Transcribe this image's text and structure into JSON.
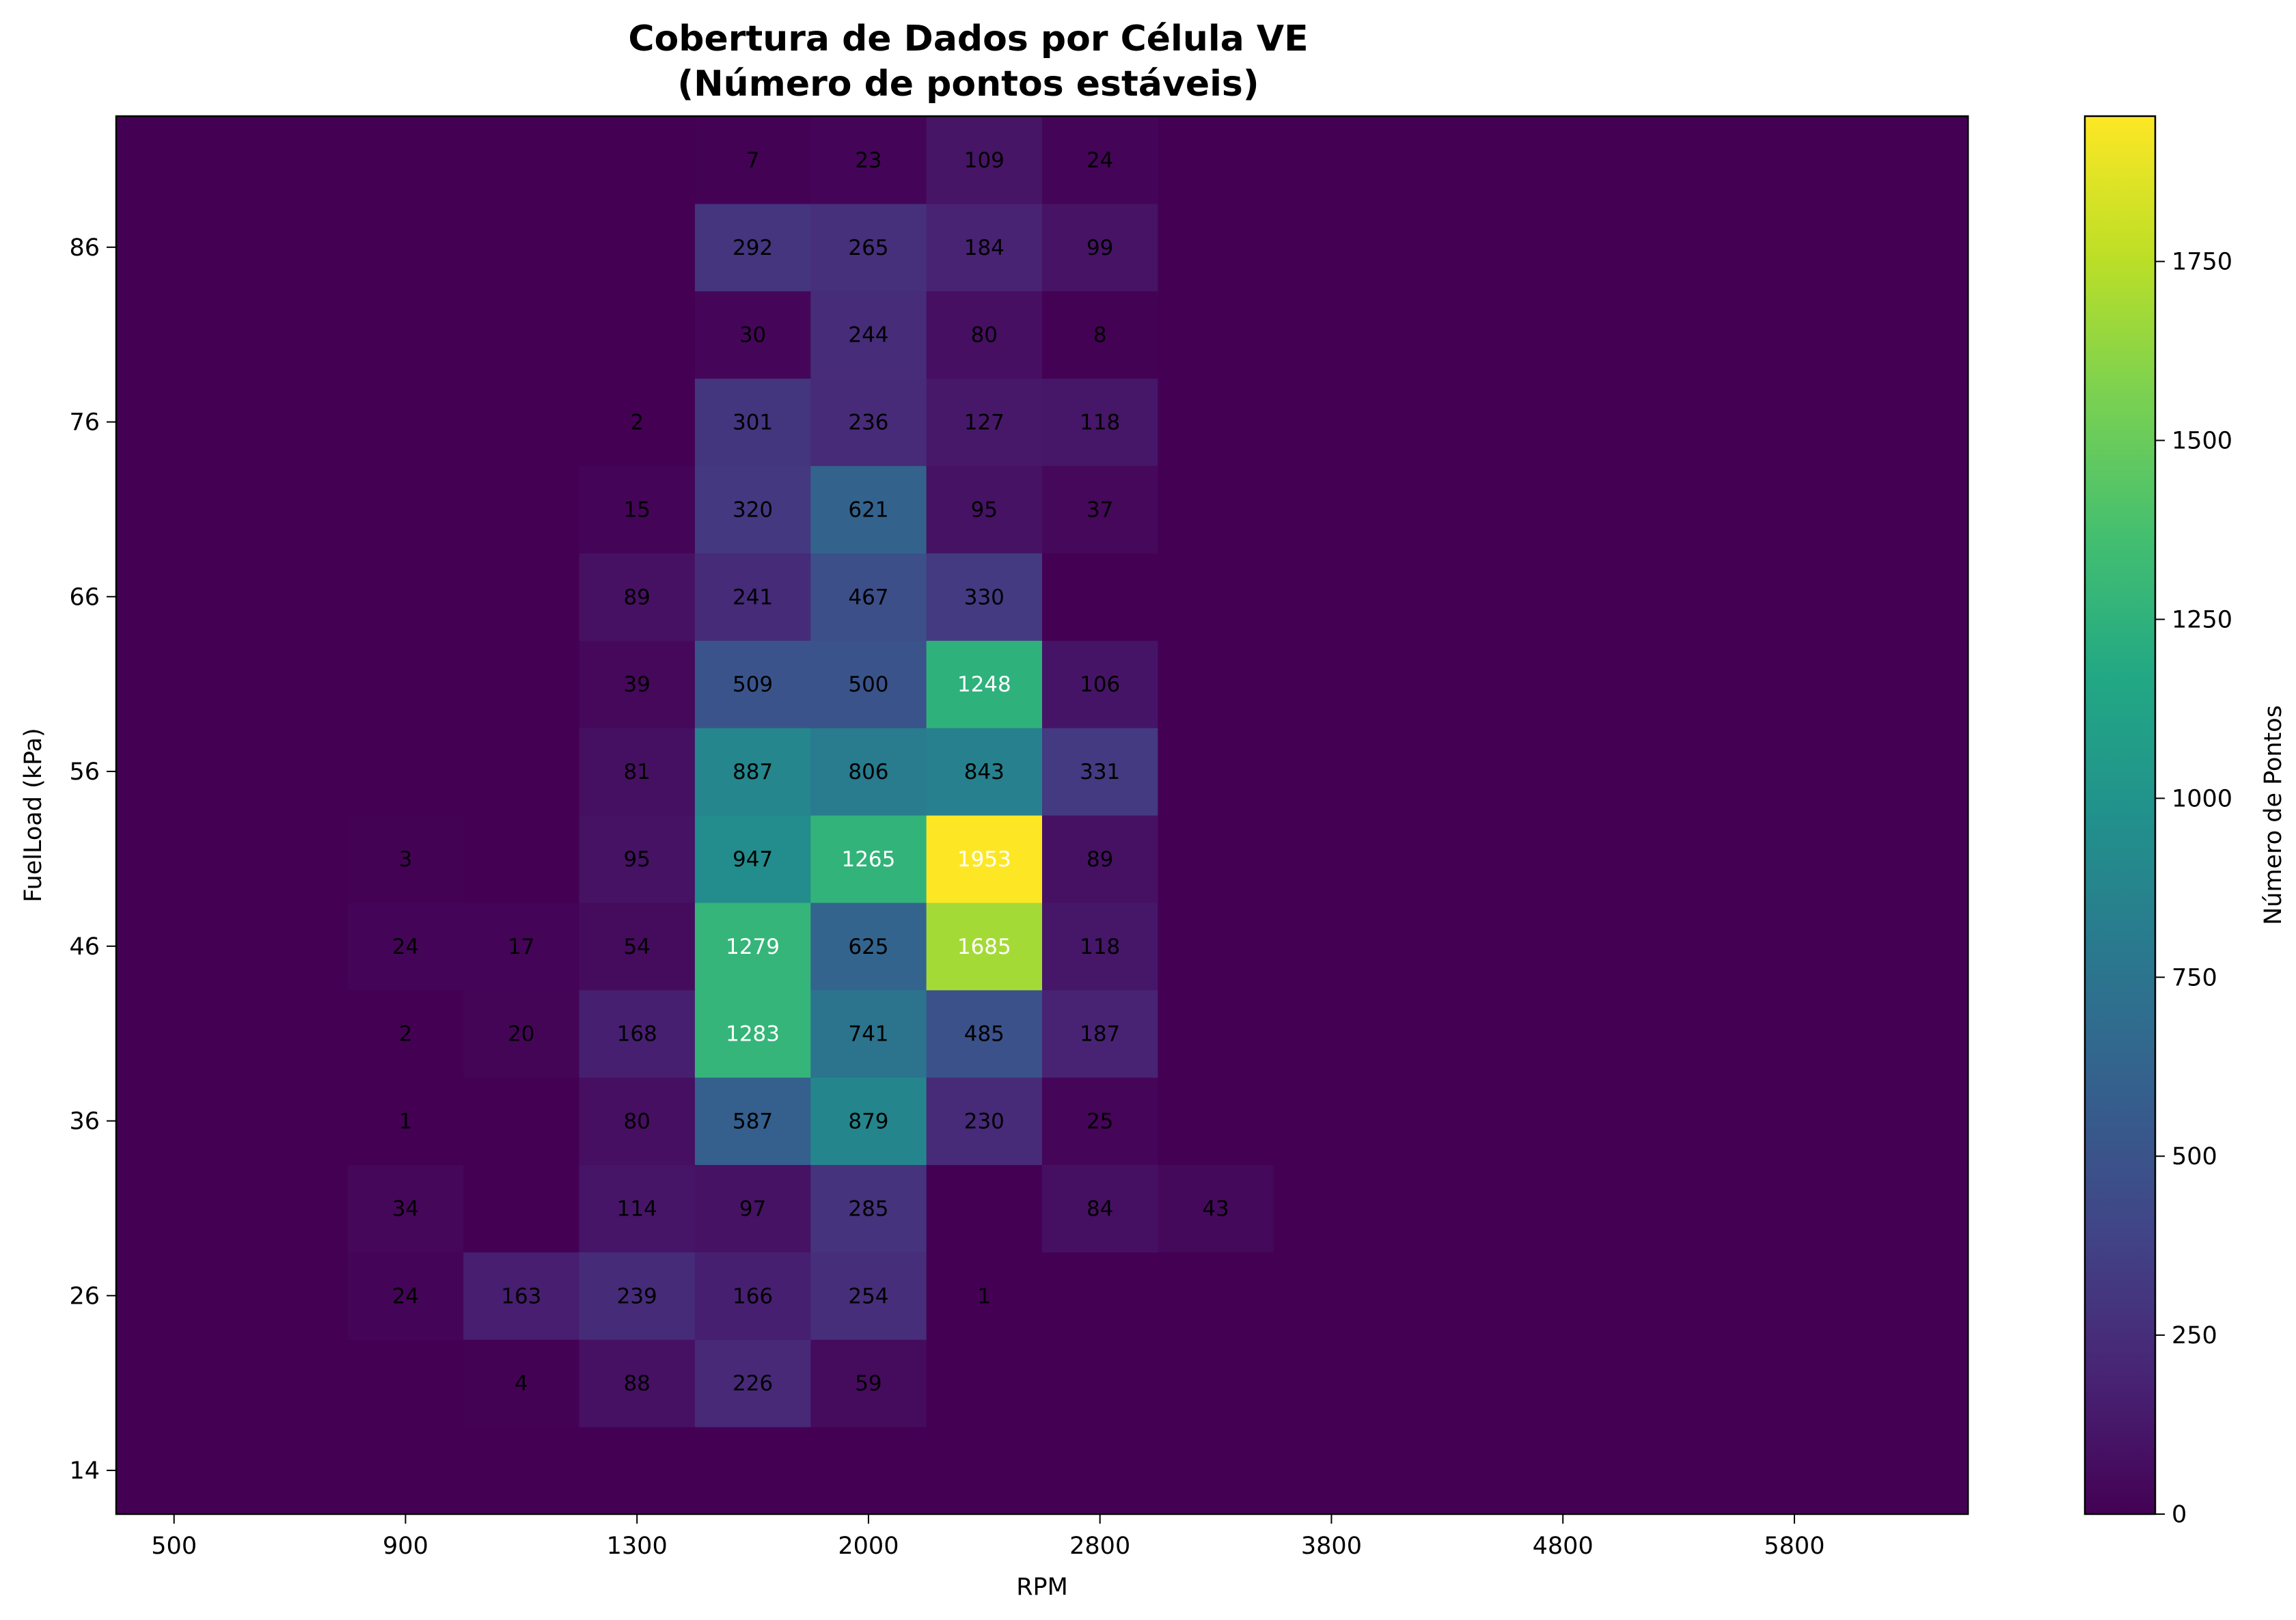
{
  "chart_data": {
    "type": "heatmap",
    "title": "Cobertura de Dados por Célula VE",
    "subtitle": "(Número de pontos estáveis)",
    "xlabel": "RPM",
    "ylabel": "FuelLoad (kPa)",
    "x_ticks": [
      "500",
      "900",
      "1300",
      "2000",
      "2800",
      "3800",
      "4800",
      "5800"
    ],
    "y_ticks": [
      "14",
      "26",
      "36",
      "46",
      "56",
      "66",
      "76",
      "86"
    ],
    "colorbar": {
      "label": "Número de Pontos",
      "min": 0,
      "max": 1953,
      "ticks": [
        0,
        250,
        500,
        750,
        1000,
        1250,
        1500,
        1750
      ]
    },
    "colormap": "viridis",
    "grid": false,
    "values": [
      [
        0,
        0,
        0,
        0,
        0,
        0,
        0,
        0,
        0,
        0,
        0,
        0,
        0,
        0,
        0,
        0
      ],
      [
        0,
        0,
        0,
        4,
        88,
        226,
        59,
        0,
        0,
        0,
        0,
        0,
        0,
        0,
        0,
        0
      ],
      [
        0,
        0,
        24,
        163,
        239,
        166,
        254,
        1,
        0,
        0,
        0,
        0,
        0,
        0,
        0,
        0
      ],
      [
        0,
        0,
        34,
        0,
        114,
        97,
        285,
        0,
        84,
        43,
        0,
        0,
        0,
        0,
        0,
        0
      ],
      [
        0,
        0,
        1,
        0,
        80,
        587,
        879,
        230,
        25,
        0,
        0,
        0,
        0,
        0,
        0,
        0
      ],
      [
        0,
        0,
        2,
        20,
        168,
        1283,
        741,
        485,
        187,
        0,
        0,
        0,
        0,
        0,
        0,
        0
      ],
      [
        0,
        0,
        24,
        17,
        54,
        1279,
        625,
        1685,
        118,
        0,
        0,
        0,
        0,
        0,
        0,
        0
      ],
      [
        0,
        0,
        3,
        0,
        95,
        947,
        1265,
        1953,
        89,
        0,
        0,
        0,
        0,
        0,
        0,
        0
      ],
      [
        0,
        0,
        0,
        0,
        81,
        887,
        806,
        843,
        331,
        0,
        0,
        0,
        0,
        0,
        0,
        0
      ],
      [
        0,
        0,
        0,
        0,
        39,
        509,
        500,
        1248,
        106,
        0,
        0,
        0,
        0,
        0,
        0,
        0
      ],
      [
        0,
        0,
        0,
        0,
        89,
        241,
        467,
        330,
        0,
        0,
        0,
        0,
        0,
        0,
        0,
        0
      ],
      [
        0,
        0,
        0,
        0,
        15,
        320,
        621,
        95,
        37,
        0,
        0,
        0,
        0,
        0,
        0,
        0
      ],
      [
        0,
        0,
        0,
        0,
        2,
        301,
        236,
        127,
        118,
        0,
        0,
        0,
        0,
        0,
        0,
        0
      ],
      [
        0,
        0,
        0,
        0,
        0,
        30,
        244,
        80,
        8,
        0,
        0,
        0,
        0,
        0,
        0,
        0
      ],
      [
        0,
        0,
        0,
        0,
        0,
        292,
        265,
        184,
        99,
        0,
        0,
        0,
        0,
        0,
        0,
        0
      ],
      [
        0,
        0,
        0,
        0,
        0,
        7,
        23,
        109,
        24,
        0,
        0,
        0,
        0,
        0,
        0,
        0
      ]
    ]
  }
}
